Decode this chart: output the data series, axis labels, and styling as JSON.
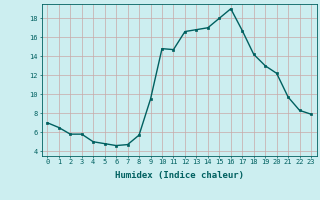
{
  "x": [
    0,
    1,
    2,
    3,
    4,
    5,
    6,
    7,
    8,
    9,
    10,
    11,
    12,
    13,
    14,
    15,
    16,
    17,
    18,
    19,
    20,
    21,
    22,
    23
  ],
  "y": [
    7.0,
    6.5,
    5.8,
    5.8,
    5.0,
    4.8,
    4.6,
    4.7,
    5.7,
    9.5,
    14.8,
    14.7,
    16.6,
    16.8,
    17.0,
    18.0,
    19.0,
    16.7,
    14.2,
    13.0,
    12.2,
    9.7,
    8.3,
    7.9
  ],
  "line_color": "#006060",
  "marker": "s",
  "markersize": 1.8,
  "linewidth": 1.0,
  "xlabel": "Humidex (Indice chaleur)",
  "xlabel_fontsize": 6.5,
  "yticks": [
    4,
    6,
    8,
    10,
    12,
    14,
    16,
    18
  ],
  "ylim": [
    3.5,
    19.5
  ],
  "xlim": [
    -0.5,
    23.5
  ],
  "bg_color": "#cceef0",
  "grid_color": "#c8a8a8",
  "tick_fontsize": 5.0
}
